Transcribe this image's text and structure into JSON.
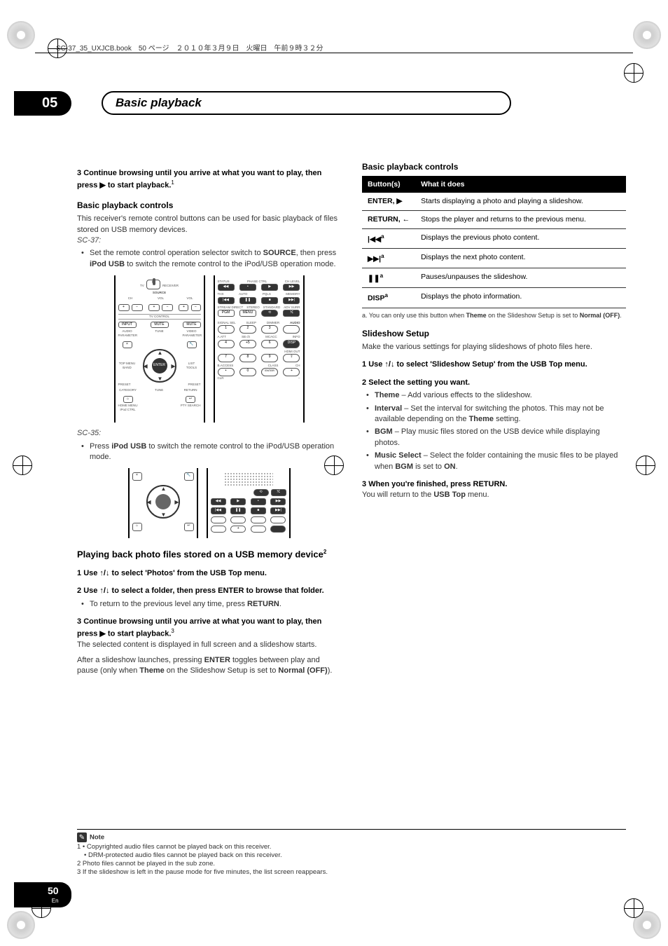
{
  "meta": {
    "header_text": "SC-37_35_UXJCB.book　50 ページ　２０１０年３月９日　火曜日　午前９時３２分"
  },
  "chapter": {
    "number": "05",
    "title": "Basic playback"
  },
  "left": {
    "step3": {
      "num": "3",
      "text": "Continue browsing until you arrive at what you want to play, then press ▶ to start playback.",
      "sup": "1"
    },
    "basic_head": "Basic playback controls",
    "basic_body": "This receiver's remote control buttons can be used for basic playback of files stored on USB memory devices.",
    "sc37_label": "SC-37:",
    "sc37_bullet": "Set the remote control operation selector switch to SOURCE, then press iPod USB to switch the remote control to the iPod/USB operation mode.",
    "sc37_bold1": "SOURCE",
    "sc37_bold2": "iPod USB",
    "sc35_label": "SC-35:",
    "sc35_bullet_pre": "Press ",
    "sc35_bullet_bold": "iPod USB",
    "sc35_bullet_post": " to switch the remote control to the iPod/USB operation mode.",
    "photo_head": "Playing back photo files stored on a USB memory device",
    "photo_head_sup": "2",
    "p1": {
      "num": "1",
      "text": "Use ↑/↓ to select 'Photos' from the USB Top menu."
    },
    "p2": {
      "num": "2",
      "text": "Use ↑/↓ to select a folder, then press ENTER to browse that folder."
    },
    "p2_bullet": "To return to the previous level any time, press ",
    "p2_bullet_bold": "RETURN",
    "p3": {
      "num": "3",
      "text_a": "Continue browsing until you arrive at what you want to play, then press ▶ to start playback.",
      "sup": "3"
    },
    "p3_body": "The selected content is displayed in full screen and a slideshow starts.",
    "p3_body2a": "After a slideshow launches, pressing ",
    "p3_body2b": "ENTER",
    "p3_body2c": " toggles between play and pause (only when ",
    "p3_body2d": "Theme",
    "p3_body2e": " on the Slideshow Setup is set to ",
    "p3_body2f": "Normal (OFF)",
    "p3_body2g": ")."
  },
  "right": {
    "tbl_head": "Basic playback controls",
    "th1": "Button(s)",
    "th2": "What it does",
    "rows": [
      {
        "b": "ENTER, ▶",
        "d": "Starts displaying a photo and playing a slideshow."
      },
      {
        "b": "RETURN, ←",
        "d": "Stops the player and returns to the previous menu."
      },
      {
        "b": "|◀◀",
        "sup": "a",
        "d": "Displays the previous photo content."
      },
      {
        "b": "▶▶|",
        "sup": "a",
        "d": "Displays the next photo content."
      },
      {
        "b": "❚❚",
        "sup": "a",
        "d": "Pauses/unpauses the slideshow."
      },
      {
        "b": "DISP",
        "sup": "a",
        "d": "Displays the photo information."
      }
    ],
    "tbl_note_a": "a. You can only use this button when ",
    "tbl_note_b": "Theme",
    "tbl_note_c": " on the Slideshow Setup is set to ",
    "tbl_note_d": "Normal (OFF)",
    "ss_head": "Slideshow Setup",
    "ss_body": "Make the various settings for playing slideshows of photo files here.",
    "ss1": {
      "num": "1",
      "text": "Use ↑/↓ to select 'Slideshow Setup' from the USB Top menu."
    },
    "ss2": {
      "num": "2",
      "text": "Select the setting you want."
    },
    "ss2_b1a": "Theme",
    "ss2_b1b": " – Add various effects to the slideshow.",
    "ss2_b2a": "Interval",
    "ss2_b2b": " – Set the interval for switching the photos. This may not be available depending on the ",
    "ss2_b2c": "Theme",
    "ss2_b2d": " setting.",
    "ss2_b3a": "BGM",
    "ss2_b3b": " – Play music files stored on the USB device while displaying photos.",
    "ss2_b4a": "Music Select",
    "ss2_b4b": " – Select the folder containing the music files to be played when ",
    "ss2_b4c": "BGM",
    "ss2_b4d": " is set to ",
    "ss2_b4e": "ON",
    "ss3": {
      "num": "3",
      "text": "When you're finished, press RETURN."
    },
    "ss3_body_a": "You will return to the ",
    "ss3_body_b": "USB Top",
    "ss3_body_c": " menu."
  },
  "notes": {
    "label": "Note",
    "n1a": "1 • Copyrighted audio files cannot be played back on this receiver.",
    "n1b": "• DRM-protected audio files cannot be played back on this receiver.",
    "n2": "2 Photo files cannot be played in the sub zone.",
    "n3": "3 If the slideshow is left in the pause mode for five minutes, the list screen reappears."
  },
  "page": {
    "num": "50",
    "lang": "En"
  },
  "remote": {
    "labels": {
      "source": "SOURCE",
      "tv": "TV",
      "receiver": "RECEIVER",
      "ch": "CH",
      "vol": "VOL",
      "tvcontrol": "TV CONTROL",
      "input": "INPUT",
      "mute": "MUTE",
      "tune": "TUNE",
      "enter": "ENTER",
      "return": "RETURN",
      "topmenu": "TOP MENU",
      "list": "LIST",
      "preset": "PRESET",
      "category": "CATEGORY",
      "home": "HOME MENU",
      "ipod": "iPod CTRL",
      "pty": "PTY SEARCH",
      "tools": "TOOLS",
      "band": "BAND",
      "status": "STATUS",
      "phase": "PHASE CTRL",
      "chlevel": "CH LEVEL",
      "thx": "THX",
      "auto": "AUTO",
      "pqls": "PQLS",
      "memory": "MEMORY",
      "stream": "STREAM DIRECT",
      "stereo": "STEREO",
      "standard": "STANDARD",
      "adv": "ADV SURR",
      "pgm": "PGM",
      "menu": "MENU",
      "signal": "SIGNAL SEL",
      "sleep": "SLEEP",
      "dimmer": "DIMMER",
      "audio": "AUDIO",
      "aatt": "A.ATT",
      "sba": "SB ch",
      "mcacc": "MCACC",
      "info": "INFO",
      "disp": "DISP",
      "hdmi": "HDMI OUT",
      "baccess": "B.ACCESS",
      "class": "CLASS",
      "clr": "CLR",
      "audiop": "AUDIO PARAMETER",
      "videop": "VIDEO PARAMETER"
    }
  }
}
